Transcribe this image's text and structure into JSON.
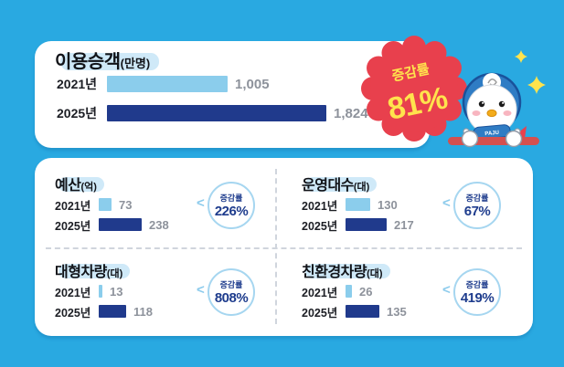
{
  "background": "#29a9e1",
  "colors": {
    "bar_2021": "#8bcdec",
    "bar_2025": "#203a8c",
    "badge_red": "#e8404d",
    "badge_text_yellow": "#ffe34d",
    "circle_text_navy": "#1e3c8d",
    "highlight_light_blue": "#cfe9f8"
  },
  "hero": {
    "title": "이용승객",
    "unit": "(만명)",
    "rows": [
      {
        "year": "2021년",
        "value": "1,005"
      },
      {
        "year": "2025년",
        "value": "1,824"
      }
    ],
    "badge": {
      "label": "증감률",
      "value": "81%"
    },
    "mascot": {
      "scarf_text": "PAJU"
    }
  },
  "stats": [
    {
      "title": "예산",
      "unit": "(억)",
      "rows": [
        {
          "year": "2021년",
          "value": "73"
        },
        {
          "year": "2025년",
          "value": "238"
        }
      ],
      "badge": {
        "label": "증감률",
        "value": "226%"
      }
    },
    {
      "title": "운영대수",
      "unit": "(대)",
      "rows": [
        {
          "year": "2021년",
          "value": "130"
        },
        {
          "year": "2025년",
          "value": "217"
        }
      ],
      "badge": {
        "label": "증감률",
        "value": "67%"
      }
    },
    {
      "title": "대형차량",
      "unit": "(대)",
      "rows": [
        {
          "year": "2021년",
          "value": "13"
        },
        {
          "year": "2025년",
          "value": "118"
        }
      ],
      "badge": {
        "label": "증감률",
        "value": "808%"
      }
    },
    {
      "title": "친환경차량",
      "unit": "(대)",
      "rows": [
        {
          "year": "2021년",
          "value": "26"
        },
        {
          "year": "2025년",
          "value": "135"
        }
      ],
      "badge": {
        "label": "증감률",
        "value": "419%"
      }
    }
  ],
  "chart_data": [
    {
      "type": "bar",
      "orientation": "horizontal",
      "title": "이용승객(만명)",
      "categories": [
        "2021년",
        "2025년"
      ],
      "values": [
        1005,
        1824
      ],
      "change_label": "증감률",
      "change_value": "81%"
    },
    {
      "type": "bar",
      "orientation": "horizontal",
      "title": "예산(억)",
      "categories": [
        "2021년",
        "2025년"
      ],
      "values": [
        73,
        238
      ],
      "change_label": "증감률",
      "change_value": "226%"
    },
    {
      "type": "bar",
      "orientation": "horizontal",
      "title": "운영대수(대)",
      "categories": [
        "2021년",
        "2025년"
      ],
      "values": [
        130,
        217
      ],
      "change_label": "증감률",
      "change_value": "67%"
    },
    {
      "type": "bar",
      "orientation": "horizontal",
      "title": "대형차량(대)",
      "categories": [
        "2021년",
        "2025년"
      ],
      "values": [
        13,
        118
      ],
      "change_label": "증감률",
      "change_value": "808%"
    },
    {
      "type": "bar",
      "orientation": "horizontal",
      "title": "친환경차량(대)",
      "categories": [
        "2021년",
        "2025년"
      ],
      "values": [
        26,
        135
      ],
      "change_label": "증감률",
      "change_value": "419%"
    }
  ]
}
